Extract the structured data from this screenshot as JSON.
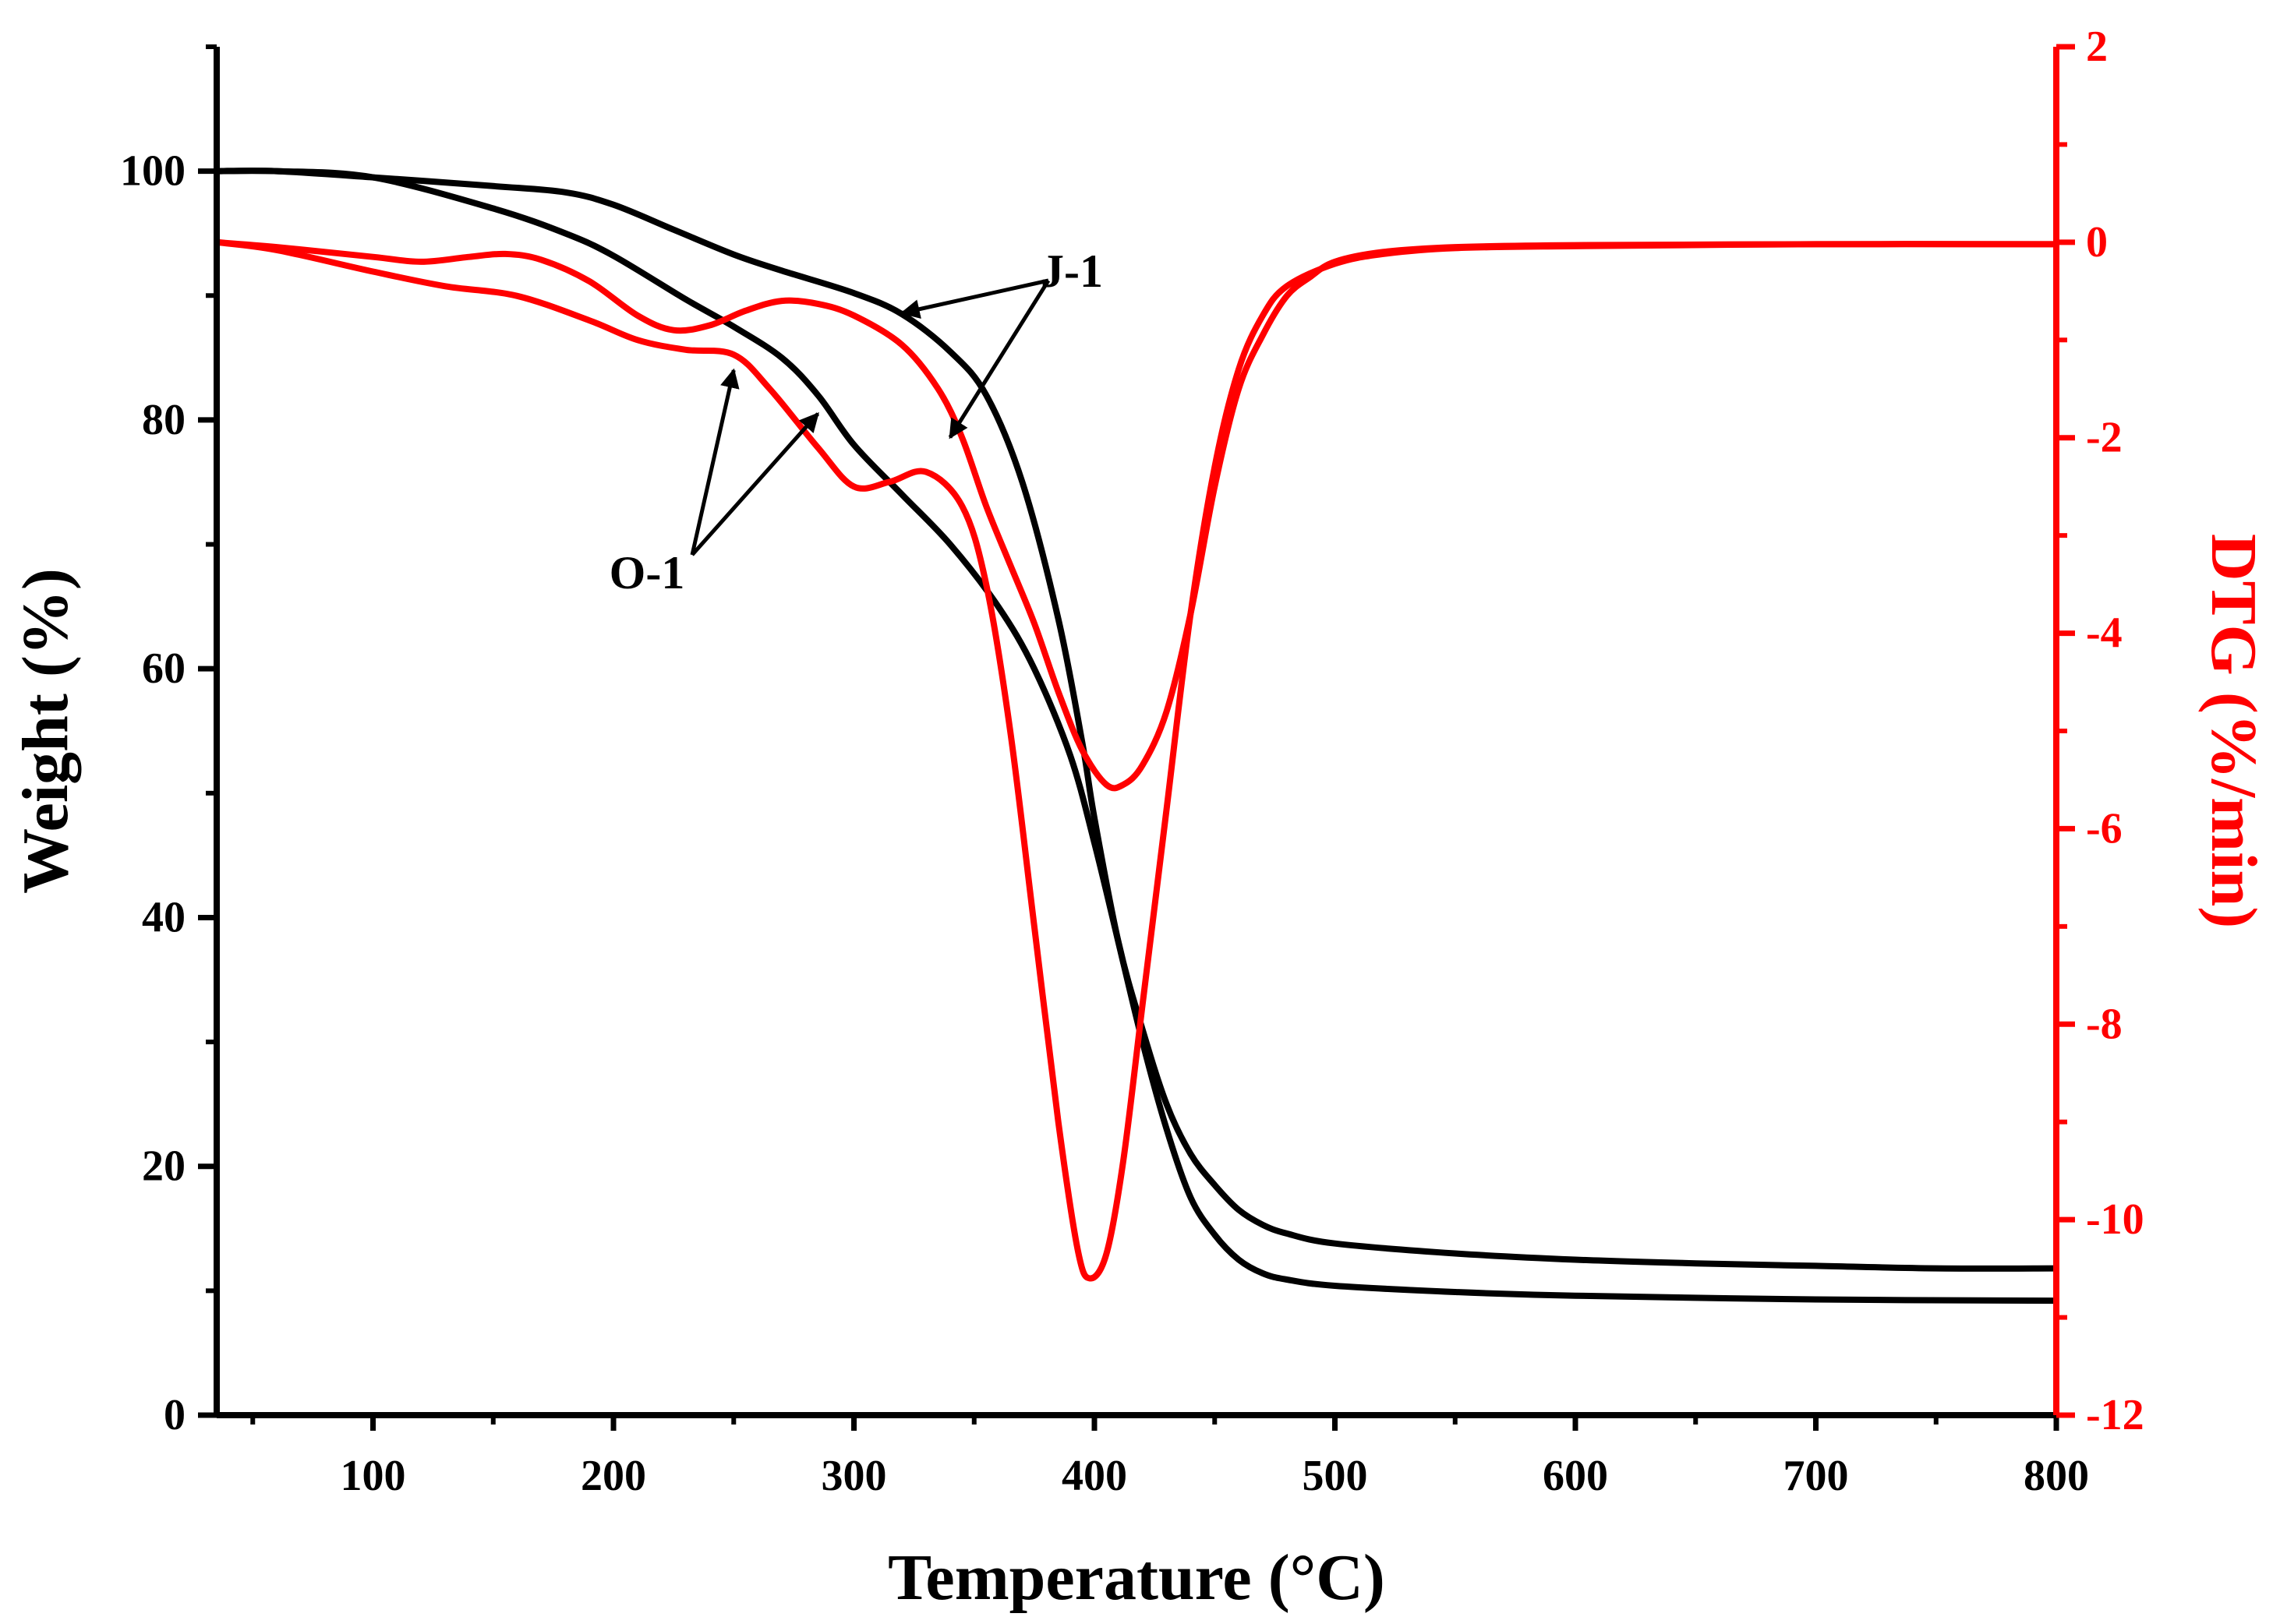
{
  "chart_data": {
    "type": "line",
    "xlabel": "Temperature (°C)",
    "ylabel": "Weight (%)",
    "y2label": "DTG (%/min)",
    "xlim": [
      35,
      800
    ],
    "ylim": [
      0,
      110
    ],
    "y2lim": [
      -12,
      2
    ],
    "x_ticks": [
      100,
      200,
      300,
      400,
      500,
      600,
      700,
      800
    ],
    "y_ticks": [
      0,
      20,
      40,
      60,
      80,
      100
    ],
    "y2_ticks": [
      -12,
      -10,
      -8,
      -6,
      -4,
      -2,
      0,
      2
    ],
    "series": [
      {
        "name": "J-1 TG",
        "axis": "left",
        "color": "#000000",
        "points": [
          [
            35,
            100
          ],
          [
            60,
            100
          ],
          [
            100,
            99.5
          ],
          [
            150,
            98.8
          ],
          [
            180,
            98.3
          ],
          [
            200,
            97.3
          ],
          [
            225,
            95.3
          ],
          [
            250,
            93.3
          ],
          [
            270,
            92
          ],
          [
            300,
            90.2
          ],
          [
            320,
            88.5
          ],
          [
            340,
            85.5
          ],
          [
            355,
            82
          ],
          [
            370,
            75
          ],
          [
            385,
            64
          ],
          [
            395,
            54
          ],
          [
            400,
            48
          ],
          [
            410,
            38
          ],
          [
            420,
            31
          ],
          [
            430,
            25
          ],
          [
            440,
            21
          ],
          [
            450,
            18.5
          ],
          [
            460,
            16.5
          ],
          [
            470,
            15.3
          ],
          [
            480,
            14.6
          ],
          [
            500,
            13.8
          ],
          [
            550,
            13
          ],
          [
            600,
            12.5
          ],
          [
            650,
            12.2
          ],
          [
            700,
            12
          ],
          [
            750,
            11.8
          ],
          [
            800,
            11.8
          ]
        ]
      },
      {
        "name": "O-1 TG",
        "axis": "left",
        "color": "#000000",
        "points": [
          [
            35,
            100
          ],
          [
            60,
            100
          ],
          [
            100,
            99.5
          ],
          [
            150,
            97
          ],
          [
            180,
            95
          ],
          [
            200,
            93.2
          ],
          [
            230,
            89.7
          ],
          [
            250,
            87.5
          ],
          [
            270,
            85
          ],
          [
            285,
            82
          ],
          [
            300,
            78
          ],
          [
            320,
            74
          ],
          [
            340,
            70
          ],
          [
            360,
            65
          ],
          [
            375,
            60
          ],
          [
            390,
            53
          ],
          [
            400,
            46
          ],
          [
            410,
            38
          ],
          [
            420,
            30
          ],
          [
            430,
            23
          ],
          [
            440,
            17.5
          ],
          [
            450,
            14.5
          ],
          [
            460,
            12.5
          ],
          [
            470,
            11.4
          ],
          [
            480,
            10.9
          ],
          [
            500,
            10.4
          ],
          [
            550,
            9.9
          ],
          [
            600,
            9.6
          ],
          [
            700,
            9.3
          ],
          [
            800,
            9.2
          ]
        ]
      },
      {
        "name": "J-1 DTG",
        "axis": "right",
        "color": "#ff0000",
        "points": [
          [
            35,
            0
          ],
          [
            60,
            -0.05
          ],
          [
            100,
            -0.15
          ],
          [
            120,
            -0.2
          ],
          [
            140,
            -0.15
          ],
          [
            155,
            -0.12
          ],
          [
            170,
            -0.18
          ],
          [
            190,
            -0.4
          ],
          [
            210,
            -0.75
          ],
          [
            225,
            -0.9
          ],
          [
            240,
            -0.85
          ],
          [
            255,
            -0.7
          ],
          [
            270,
            -0.6
          ],
          [
            285,
            -0.63
          ],
          [
            300,
            -0.75
          ],
          [
            320,
            -1.05
          ],
          [
            335,
            -1.5
          ],
          [
            345,
            -2
          ],
          [
            355,
            -2.7
          ],
          [
            365,
            -3.3
          ],
          [
            375,
            -3.9
          ],
          [
            385,
            -4.6
          ],
          [
            395,
            -5.2
          ],
          [
            405,
            -5.55
          ],
          [
            412,
            -5.55
          ],
          [
            420,
            -5.35
          ],
          [
            430,
            -4.8
          ],
          [
            440,
            -3.8
          ],
          [
            450,
            -2.5
          ],
          [
            460,
            -1.5
          ],
          [
            470,
            -0.95
          ],
          [
            480,
            -0.55
          ],
          [
            490,
            -0.35
          ],
          [
            500,
            -0.2
          ],
          [
            520,
            -0.1
          ],
          [
            550,
            -0.05
          ],
          [
            600,
            -0.03
          ],
          [
            700,
            -0.02
          ],
          [
            800,
            -0.02
          ]
        ]
      },
      {
        "name": "O-1 DTG",
        "axis": "right",
        "color": "#ff0000",
        "points": [
          [
            35,
            0
          ],
          [
            60,
            -0.08
          ],
          [
            100,
            -0.3
          ],
          [
            130,
            -0.45
          ],
          [
            160,
            -0.55
          ],
          [
            190,
            -0.8
          ],
          [
            210,
            -1
          ],
          [
            230,
            -1.1
          ],
          [
            250,
            -1.15
          ],
          [
            265,
            -1.5
          ],
          [
            285,
            -2.1
          ],
          [
            300,
            -2.5
          ],
          [
            315,
            -2.45
          ],
          [
            330,
            -2.35
          ],
          [
            345,
            -2.7
          ],
          [
            355,
            -3.5
          ],
          [
            365,
            -5
          ],
          [
            375,
            -7
          ],
          [
            385,
            -9
          ],
          [
            393,
            -10.3
          ],
          [
            398,
            -10.6
          ],
          [
            405,
            -10.35
          ],
          [
            412,
            -9.4
          ],
          [
            420,
            -7.8
          ],
          [
            430,
            -5.8
          ],
          [
            440,
            -3.8
          ],
          [
            450,
            -2.3
          ],
          [
            460,
            -1.3
          ],
          [
            470,
            -0.75
          ],
          [
            480,
            -0.45
          ],
          [
            500,
            -0.22
          ],
          [
            520,
            -0.12
          ],
          [
            550,
            -0.06
          ],
          [
            600,
            -0.04
          ],
          [
            700,
            -0.02
          ],
          [
            800,
            -0.02
          ]
        ]
      }
    ],
    "annotations": [
      {
        "text": "J-1",
        "targets": [
          [
            320,
            88.6
          ],
          [
            340,
            78.6
          ]
        ]
      },
      {
        "text": "O-1",
        "targets": [
          [
            250,
            84
          ],
          [
            285,
            80.5
          ]
        ]
      }
    ]
  }
}
